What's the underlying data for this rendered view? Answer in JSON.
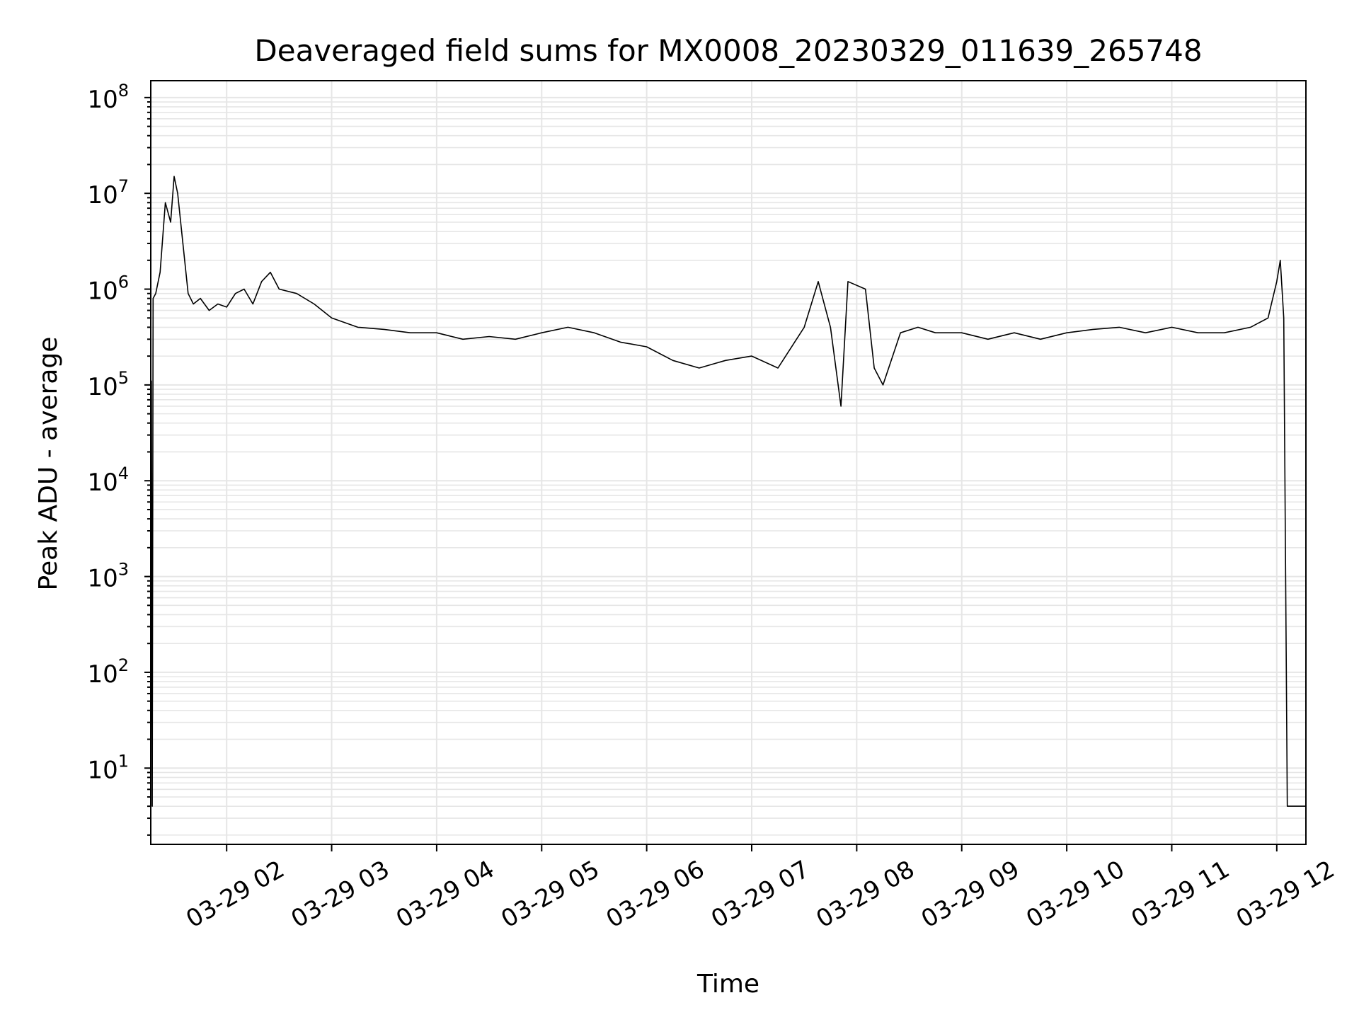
{
  "chart_data": {
    "type": "line",
    "title": "Deaveraged field sums for MX0008_20230329_011639_265748",
    "xlabel": "Time",
    "ylabel": "Peak ADU - average",
    "yscale": "log",
    "ylim": [
      1.6,
      150000000
    ],
    "xlim": [
      "2023-03-29 01:16:39",
      "2023-03-29 12:16:39"
    ],
    "grid": true,
    "line_color": "#000000",
    "grid_color": "#e6e6e6",
    "x_tick_labels": [
      "03-29 02",
      "03-29 03",
      "03-29 04",
      "03-29 05",
      "03-29 06",
      "03-29 07",
      "03-29 08",
      "03-29 09",
      "03-29 10",
      "03-29 11",
      "03-29 12"
    ],
    "x_tick_values": [
      "2023-03-29 02:00",
      "2023-03-29 03:00",
      "2023-03-29 04:00",
      "2023-03-29 05:00",
      "2023-03-29 06:00",
      "2023-03-29 07:00",
      "2023-03-29 08:00",
      "2023-03-29 09:00",
      "2023-03-29 10:00",
      "2023-03-29 11:00",
      "2023-03-29 12:00"
    ],
    "y_tick_exponents": [
      1,
      2,
      3,
      4,
      5,
      6,
      7,
      8
    ],
    "series": [
      {
        "x": [
          "2023-03-29 01:16:39",
          "2023-03-29 01:17:00",
          "2023-03-29 01:17:30",
          "2023-03-29 01:18:00",
          "2023-03-29 01:19:30",
          "2023-03-29 01:22:00",
          "2023-03-29 01:25:00",
          "2023-03-29 01:28:00",
          "2023-03-29 01:30:00",
          "2023-03-29 01:32:00",
          "2023-03-29 01:35:00",
          "2023-03-29 01:38:00",
          "2023-03-29 01:41:00",
          "2023-03-29 01:45:00",
          "2023-03-29 01:50:00",
          "2023-03-29 01:55:00",
          "2023-03-29 02:00:00",
          "2023-03-29 02:05:00",
          "2023-03-29 02:10:00",
          "2023-03-29 02:15:00",
          "2023-03-29 02:20:00",
          "2023-03-29 02:25:00",
          "2023-03-29 02:30:00",
          "2023-03-29 02:40:00",
          "2023-03-29 02:50:00",
          "2023-03-29 03:00:00",
          "2023-03-29 03:15:00",
          "2023-03-29 03:30:00",
          "2023-03-29 03:45:00",
          "2023-03-29 04:00:00",
          "2023-03-29 04:15:00",
          "2023-03-29 04:30:00",
          "2023-03-29 04:45:00",
          "2023-03-29 05:00:00",
          "2023-03-29 05:15:00",
          "2023-03-29 05:30:00",
          "2023-03-29 05:45:00",
          "2023-03-29 06:00:00",
          "2023-03-29 06:15:00",
          "2023-03-29 06:30:00",
          "2023-03-29 06:45:00",
          "2023-03-29 07:00:00",
          "2023-03-29 07:15:00",
          "2023-03-29 07:30:00",
          "2023-03-29 07:38:00",
          "2023-03-29 07:45:00",
          "2023-03-29 07:51:00",
          "2023-03-29 07:55:00",
          "2023-03-29 08:05:00",
          "2023-03-29 08:10:00",
          "2023-03-29 08:15:00",
          "2023-03-29 08:25:00",
          "2023-03-29 08:35:00",
          "2023-03-29 08:45:00",
          "2023-03-29 09:00:00",
          "2023-03-29 09:15:00",
          "2023-03-29 09:30:00",
          "2023-03-29 09:45:00",
          "2023-03-29 10:00:00",
          "2023-03-29 10:15:00",
          "2023-03-29 10:30:00",
          "2023-03-29 10:45:00",
          "2023-03-29 11:00:00",
          "2023-03-29 11:15:00",
          "2023-03-29 11:30:00",
          "2023-03-29 11:45:00",
          "2023-03-29 11:55:00",
          "2023-03-29 12:00:00",
          "2023-03-29 12:02:00",
          "2023-03-29 12:04:00",
          "2023-03-29 12:06:00",
          "2023-03-29 12:16:39"
        ],
        "values": [
          1.6,
          110000,
          4,
          800000,
          900000,
          1500000,
          8000000,
          5000000,
          15000000,
          10000000,
          3000000,
          900000,
          700000,
          800000,
          600000,
          700000,
          650000,
          900000,
          1000000,
          700000,
          1200000,
          1500000,
          1000000,
          900000,
          700000,
          500000,
          400000,
          380000,
          350000,
          350000,
          300000,
          320000,
          300000,
          350000,
          400000,
          350000,
          280000,
          250000,
          180000,
          150000,
          180000,
          200000,
          150000,
          400000,
          1200000,
          400000,
          60000,
          1200000,
          1000000,
          150000,
          100000,
          350000,
          400000,
          350000,
          350000,
          300000,
          350000,
          300000,
          350000,
          380000,
          400000,
          350000,
          400000,
          350000,
          350000,
          400000,
          500000,
          1200000,
          2000000,
          500000,
          4,
          4
        ]
      }
    ]
  }
}
